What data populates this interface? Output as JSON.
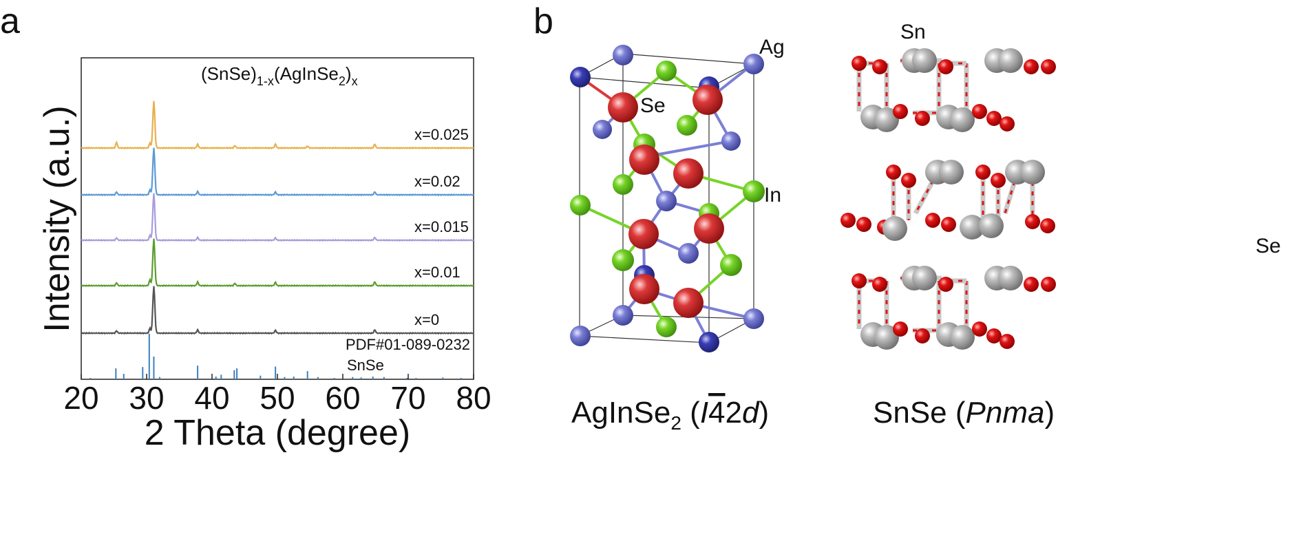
{
  "panels": {
    "a": "a",
    "b": "b"
  },
  "chart_data": {
    "type": "line",
    "title": "(SnSe)1-x(AgInSe2)x",
    "title_parts": {
      "base1": "(SnSe)",
      "sub1": "1-x",
      "base2": "(AgInSe",
      "sub2": "2",
      "base3": ")",
      "sub3": "x"
    },
    "xlabel": "2 Theta (degree)",
    "ylabel": "Intensity (a.u.)",
    "xlim": [
      20,
      80
    ],
    "xticks": [
      "20",
      "30",
      "40",
      "50",
      "60",
      "70",
      "80"
    ],
    "yticks": "none",
    "grid": false,
    "legend": "none",
    "series": [
      {
        "name": "x=0.025",
        "color": "#e8b04c",
        "peaks": [
          [
            25.4,
            0.12
          ],
          [
            30.5,
            0.1
          ],
          [
            31.1,
            1.0
          ],
          [
            37.8,
            0.08
          ],
          [
            43.5,
            0.05
          ],
          [
            49.7,
            0.08
          ],
          [
            54.6,
            0.04
          ],
          [
            64.9,
            0.08
          ]
        ]
      },
      {
        "name": "x=0.02",
        "color": "#5b9bd5",
        "peaks": [
          [
            25.4,
            0.06
          ],
          [
            30.5,
            0.1
          ],
          [
            31.1,
            1.0
          ],
          [
            37.8,
            0.07
          ],
          [
            49.7,
            0.06
          ],
          [
            64.9,
            0.06
          ]
        ]
      },
      {
        "name": "x=0.015",
        "color": "#a89cdb",
        "peaks": [
          [
            25.4,
            0.05
          ],
          [
            30.5,
            0.1
          ],
          [
            31.1,
            1.0
          ],
          [
            37.8,
            0.06
          ],
          [
            49.7,
            0.05
          ],
          [
            64.9,
            0.06
          ]
        ]
      },
      {
        "name": "x=0.01",
        "color": "#5a9e2f",
        "peaks": [
          [
            25.4,
            0.06
          ],
          [
            30.5,
            0.12
          ],
          [
            31.1,
            1.0
          ],
          [
            37.8,
            0.08
          ],
          [
            43.5,
            0.05
          ],
          [
            49.7,
            0.07
          ],
          [
            64.9,
            0.08
          ]
        ]
      },
      {
        "name": "x=0",
        "color": "#555555",
        "peaks": [
          [
            25.4,
            0.05
          ],
          [
            30.5,
            0.1
          ],
          [
            31.1,
            1.0
          ],
          [
            37.8,
            0.07
          ],
          [
            49.7,
            0.06
          ],
          [
            64.9,
            0.07
          ]
        ]
      }
    ],
    "reference": {
      "label_line1": "PDF#01-089-0232",
      "label_line2": "SnSe",
      "color": "#3a7fc1",
      "sticks": [
        [
          21.4,
          0.03
        ],
        [
          25.3,
          0.24
        ],
        [
          26.5,
          0.12
        ],
        [
          29.4,
          0.27
        ],
        [
          30.4,
          1.0
        ],
        [
          31.1,
          0.5
        ],
        [
          32.0,
          0.05
        ],
        [
          37.8,
          0.3
        ],
        [
          40.6,
          0.06
        ],
        [
          41.4,
          0.1
        ],
        [
          43.4,
          0.2
        ],
        [
          43.8,
          0.24
        ],
        [
          47.4,
          0.08
        ],
        [
          49.7,
          0.28
        ],
        [
          51.1,
          0.05
        ],
        [
          52.5,
          0.06
        ],
        [
          54.6,
          0.18
        ],
        [
          56.2,
          0.05
        ],
        [
          58.7,
          0.03
        ],
        [
          61.5,
          0.05
        ],
        [
          62.8,
          0.04
        ],
        [
          64.6,
          0.06
        ],
        [
          66.3,
          0.05
        ],
        [
          69.8,
          0.03
        ],
        [
          71.2,
          0.03
        ],
        [
          75.3,
          0.04
        ],
        [
          78.1,
          0.03
        ]
      ]
    }
  },
  "structures": {
    "left": {
      "elements": {
        "ag": "Ag",
        "se": "Se",
        "in": "In"
      },
      "caption_parts": {
        "main": "AgInSe",
        "sub": "2",
        "open": " (",
        "space_group": "I",
        "bar": "4",
        "rest": "2",
        "italic_d": "d",
        "close": ")"
      },
      "colors": {
        "ag": "#7b7fd4",
        "in": "#77d428",
        "se": "#dc3838"
      }
    },
    "right": {
      "elements": {
        "sn": "Sn",
        "se": "Se"
      },
      "caption_parts": {
        "main": "SnSe",
        "open": " (",
        "space_group": "Pnma",
        "close": ")"
      },
      "colors": {
        "sn": "#b8b8b8",
        "se": "#dd1a1a"
      }
    }
  }
}
